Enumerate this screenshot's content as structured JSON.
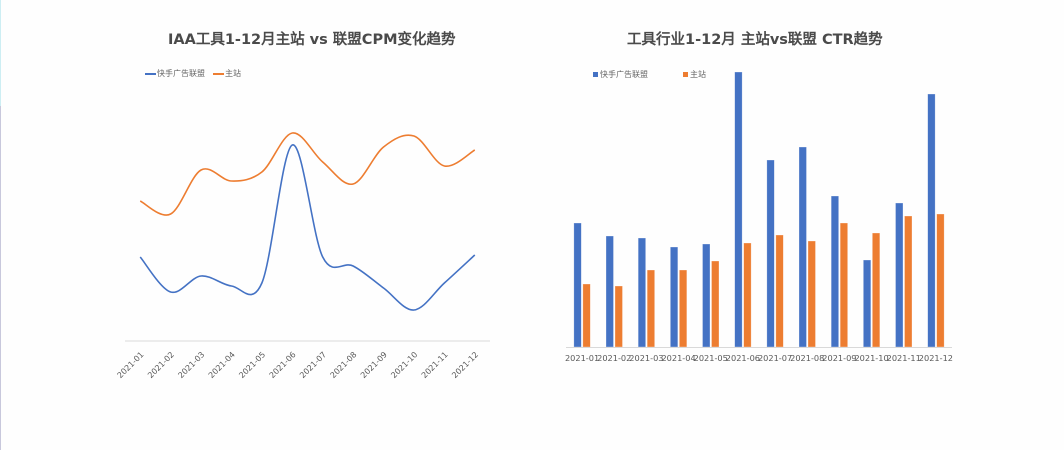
{
  "colors": {
    "series_blue": "#4472c4",
    "series_orange": "#ed7d31",
    "axis": "#d9d9d9",
    "title": "#4a4a4a",
    "tick": "#595959"
  },
  "chart_data": [
    {
      "type": "line",
      "title": "IAA工具1-12月主站 vs 联盟CPM变化趋势",
      "xlabel": "",
      "ylabel": "",
      "smooth": true,
      "grid": false,
      "legend_position": "top-left",
      "categories": [
        "2021-01",
        "2021-02",
        "2021-03",
        "2021-04",
        "2021-05",
        "2021-06",
        "2021-07",
        "2021-08",
        "2021-09",
        "2021-10",
        "2021-11",
        "2021-12"
      ],
      "series": [
        {
          "name": "快手广告联盟",
          "color": "#4472c4",
          "values": [
            84,
            49,
            65,
            55,
            58,
            196,
            84,
            75,
            53,
            31,
            58,
            86
          ]
        },
        {
          "name": "主站",
          "color": "#ed7d31",
          "values": [
            140,
            127,
            171,
            160,
            169,
            208,
            179,
            157,
            194,
            205,
            175,
            191
          ]
        }
      ],
      "ylim": [
        0,
        220
      ],
      "note": "No y-axis shown; values are relative heights estimated from pixels"
    },
    {
      "type": "bar",
      "title": "工具行业1-12月 主站vs联盟 CTR趋势",
      "xlabel": "",
      "ylabel": "",
      "grid": false,
      "legend_position": "top-left",
      "categories": [
        "2021-01",
        "2021-02",
        "2021-03",
        "2021-04",
        "2021-05",
        "2021-06",
        "2021-07",
        "2021-08",
        "2021-09",
        "2021-10",
        "2021-11",
        "2021-12"
      ],
      "series": [
        {
          "name": "快手广告联盟",
          "color": "#4472c4",
          "values": [
            124,
            111,
            109,
            100,
            103,
            275,
            187,
            200,
            151,
            87,
            144,
            253
          ]
        },
        {
          "name": "主站",
          "color": "#ed7d31",
          "values": [
            63,
            61,
            77,
            77,
            86,
            104,
            112,
            106,
            124,
            114,
            131,
            133
          ]
        }
      ],
      "ylim": [
        0,
        275
      ],
      "note": "No y-axis shown; values are relative heights estimated from pixels"
    }
  ],
  "line_chart": {
    "title": "IAA工具1-12月主站 vs 联盟CPM变化趋势",
    "legend": [
      {
        "label": "快手广告联盟"
      },
      {
        "label": "主站"
      }
    ]
  },
  "bar_chart": {
    "title": "工具行业1-12月 主站vs联盟 CTR趋势",
    "legend": [
      {
        "label": "快手广告联盟"
      },
      {
        "label": "主站"
      }
    ]
  }
}
